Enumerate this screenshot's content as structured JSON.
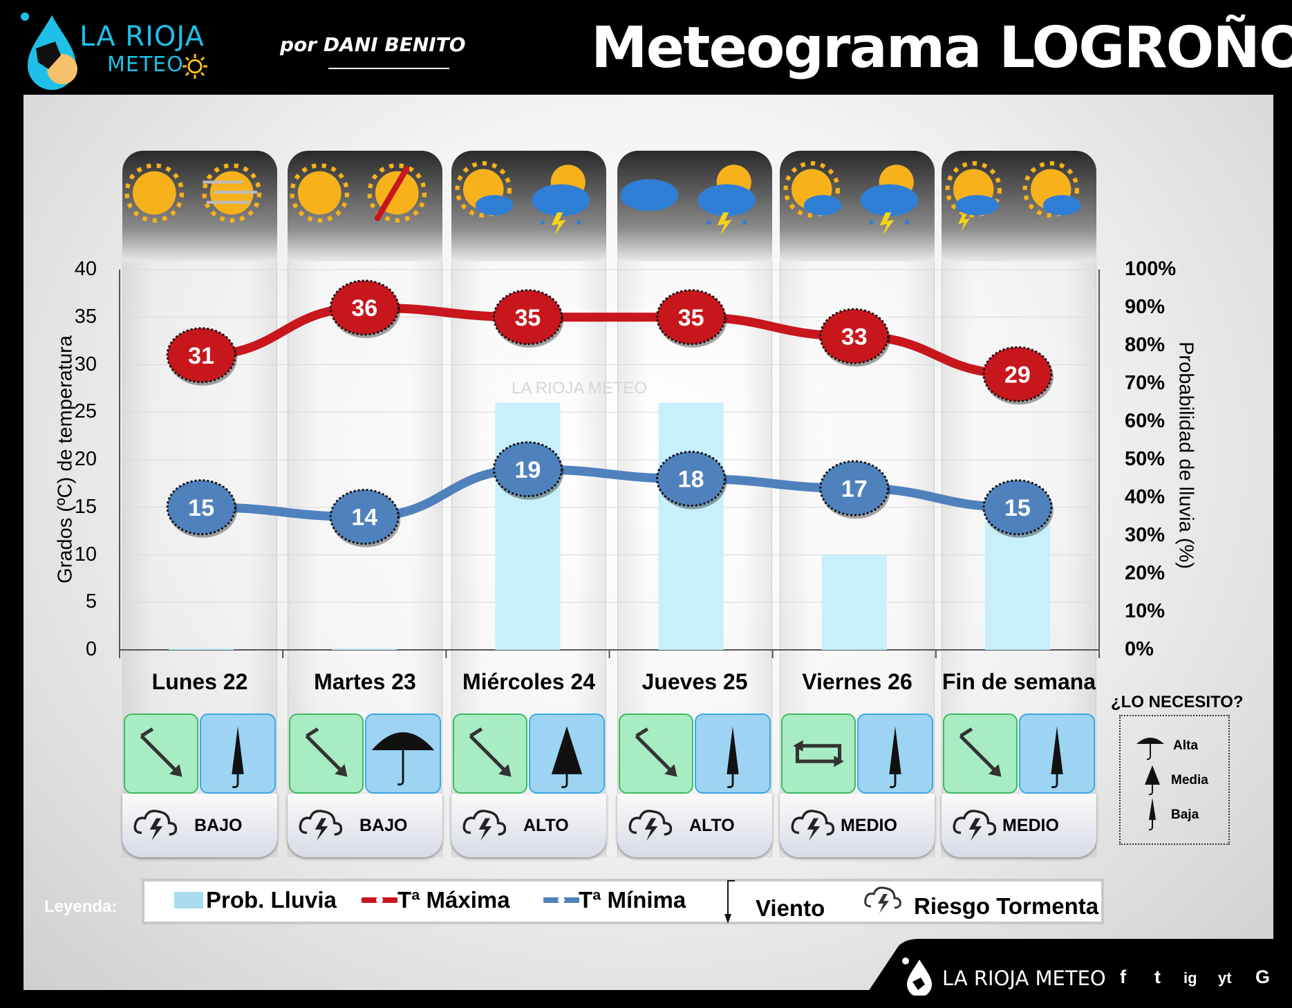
{
  "header": {
    "title": "Meteograma LOGROÑO",
    "logo_line1": "LA RIOJA",
    "logo_line2": "METEO",
    "byline": "por DANI BENITO"
  },
  "watermark": "LA RIOJA METEO",
  "chart_data": {
    "type": "line",
    "categories": [
      "Lunes 22",
      "Martes 23",
      "Miércoles 24",
      "Jueves 25",
      "Viernes 26",
      "Fin de semana"
    ],
    "series": [
      {
        "name": "Tª Máxima",
        "type": "line",
        "axis": "left",
        "color": "#c8161d",
        "values": [
          31,
          36,
          35,
          35,
          33,
          29
        ]
      },
      {
        "name": "Tª Mínima",
        "type": "line",
        "axis": "left",
        "color": "#4f81bd",
        "values": [
          15,
          14,
          19,
          18,
          17,
          15
        ]
      },
      {
        "name": "Prob. Lluvia",
        "type": "bar",
        "axis": "right",
        "color": "#c7effc",
        "values": [
          0,
          0,
          65,
          65,
          25,
          35
        ]
      }
    ],
    "ylabel": "Grados (ºC) de temperatura",
    "ylabel_right": "Probabilidad de lluvia (%)",
    "ylim": [
      0,
      40
    ],
    "ylim_right": [
      0,
      100
    ],
    "yticks": [
      "0",
      "5",
      "10",
      "15",
      "20",
      "25",
      "30",
      "35",
      "40"
    ],
    "yticks_right": [
      "0%",
      "10%",
      "20%",
      "30%",
      "40%",
      "50%",
      "60%",
      "70%",
      "80%",
      "90%",
      "100%"
    ],
    "grid": true
  },
  "days": [
    {
      "label": "Lunes 22",
      "icons": [
        "sun-icon",
        "sun-wind-icon"
      ],
      "wind": "wind-arrow-icon",
      "umbrella": "umbrella-closed-icon",
      "storm_risk": "BAJO"
    },
    {
      "label": "Martes 23",
      "icons": [
        "sun-icon",
        "sun-hot-icon"
      ],
      "wind": "wind-arrow-icon",
      "umbrella": "umbrella-open-icon",
      "storm_risk": "BAJO"
    },
    {
      "label": "Miércoles 24",
      "icons": [
        "sun-cloud-icon",
        "storm-cloud-icon"
      ],
      "wind": "wind-arrow-icon",
      "umbrella": "umbrella-half-icon",
      "storm_risk": "ALTO"
    },
    {
      "label": "Jueves 25",
      "icons": [
        "cloud-icon",
        "storm-cloud-icon"
      ],
      "wind": "wind-arrow-icon",
      "umbrella": "umbrella-closed-icon",
      "storm_risk": "ALTO"
    },
    {
      "label": "Viernes 26",
      "icons": [
        "sun-cloud-icon",
        "storm-cloud-icon"
      ],
      "wind": "wind-variable-icon",
      "umbrella": "umbrella-closed-icon",
      "storm_risk": "MEDIO"
    },
    {
      "label": "Fin de semana",
      "icons": [
        "sun-storm-icon",
        "sun-cloud-icon"
      ],
      "wind": "wind-arrow-icon",
      "umbrella": "umbrella-closed-icon",
      "storm_risk": "MEDIO"
    }
  ],
  "need_box": {
    "title": "¿LO NECESITO?",
    "items": [
      "Alta",
      "Media",
      "Baja"
    ]
  },
  "legend": {
    "label": "Leyenda:",
    "items": [
      "Prob. Lluvia",
      "Tª Máxima",
      "Tª Mínima",
      "Viento",
      "Riesgo Tormenta"
    ]
  },
  "footer": {
    "brand": "LA RIOJA METEO",
    "social": [
      "f",
      "t",
      "ig",
      "yt",
      "G"
    ]
  },
  "colors": {
    "max_temp": "#c8161d",
    "min_temp": "#4f81bd",
    "rain_bar": "#c7effc",
    "logo": "#1ec0e8"
  }
}
